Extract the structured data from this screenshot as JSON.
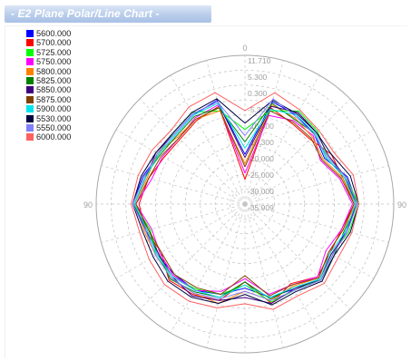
{
  "header": {
    "title": "- E2 Plane Polar/Line Chart -"
  },
  "chart_data": {
    "type": "line",
    "subtype": "polar",
    "title": "- E2 Plane Polar/Line Chart -",
    "angle_ticks": [
      "0",
      "90",
      "90"
    ],
    "radial_ticks": [
      "11.710",
      "5.300",
      "0.300",
      "-5.300",
      "-10.000",
      "-15.300",
      "-20.000",
      "-25.000",
      "-30.000",
      "-35.909"
    ],
    "radial_range": [
      -35.909,
      11.71
    ],
    "grid": true,
    "legend_position": "top-left",
    "angles_deg": [
      0,
      15,
      30,
      45,
      60,
      75,
      90,
      105,
      120,
      135,
      150,
      165,
      180,
      195,
      210,
      225,
      240,
      255,
      270,
      285,
      300,
      315,
      330,
      345
    ],
    "series": [
      {
        "name": "5600.000",
        "color": "#0000ff",
        "values": [
          -20,
          -2,
          -3,
          -4.5,
          -6.5,
          -2,
          0,
          -2.5,
          -3.5,
          -1.5,
          -4.5,
          -5,
          -9,
          -6,
          -4,
          -4,
          -3.5,
          -3.5,
          0,
          -2,
          -4,
          -4.5,
          -3,
          -1.5
        ]
      },
      {
        "name": "5700.000",
        "color": "#ff0000",
        "values": [
          -28,
          -4,
          -6,
          -6.5,
          -4,
          -3.5,
          -1,
          -4,
          -4.5,
          -3,
          -6.5,
          -3,
          -11,
          -4,
          -2.5,
          -1.5,
          -5,
          -3,
          -2,
          -4,
          -6,
          -6.5,
          -5,
          -3.5
        ]
      },
      {
        "name": "5725.000",
        "color": "#00ff00",
        "values": [
          -12,
          -5,
          -1.5,
          -3,
          -5.5,
          -2.5,
          0.5,
          -1.5,
          -4,
          -2,
          -4,
          -3.5,
          -10,
          -6,
          -4.5,
          -3,
          -3,
          -4.5,
          -0.5,
          -3,
          -4,
          -3.5,
          -2,
          -5
        ]
      },
      {
        "name": "5750.000",
        "color": "#ff00ff",
        "values": [
          -26,
          -6.5,
          -5,
          -5,
          -8,
          -4.5,
          -1.5,
          -4,
          -6,
          -3,
          -6,
          -6,
          -12,
          -7,
          -4,
          -3.5,
          -4.5,
          -5,
          -1,
          -5,
          -5.5,
          -6,
          -4,
          -3
        ]
      },
      {
        "name": "5800.000",
        "color": "#ff8000",
        "values": [
          -23,
          -3,
          -4,
          -5.5,
          -7,
          -3.5,
          -0.5,
          -3.5,
          -5,
          -2.5,
          -5.5,
          -4,
          -8,
          -3,
          -3,
          -2.5,
          -3,
          -2.5,
          -0.5,
          -3.5,
          -3.5,
          -5.5,
          -4.5,
          -5
        ]
      },
      {
        "name": "5825.000",
        "color": "#008000",
        "values": [
          -16,
          -2.5,
          -4.5,
          -4,
          -6,
          -3,
          0,
          -3,
          -3,
          -1.5,
          -5,
          -4.5,
          -11,
          -5,
          -3.5,
          -2,
          -4,
          -4,
          0,
          -2.5,
          -4.5,
          -5,
          -3.5,
          -4
        ]
      },
      {
        "name": "5850.000",
        "color": "#400080",
        "values": [
          -21,
          -3.5,
          -2,
          -3.5,
          -5,
          -2.5,
          -0.5,
          -2,
          -4,
          -2,
          -4.5,
          -3,
          -6,
          -4,
          -2,
          -3,
          -4,
          -3,
          -0.5,
          -3,
          -3,
          -4,
          -2.5,
          -2
        ]
      },
      {
        "name": "5875.000",
        "color": "#804000",
        "values": [
          -24,
          -5,
          -5.5,
          -6,
          -7.5,
          -4,
          -1,
          -3.5,
          -5,
          -2.5,
          -6,
          -5.5,
          -13,
          -6,
          -5,
          -4,
          -5,
          -4,
          -1,
          -4,
          -5,
          -6,
          -4.5,
          -4
        ]
      },
      {
        "name": "5900.000",
        "color": "#00e5ee",
        "values": [
          -18,
          -4.5,
          -3,
          -4,
          -6,
          -3,
          -0.5,
          -2.5,
          -4.5,
          -2,
          -5,
          -5,
          -10,
          -5,
          -4,
          -3,
          -3.5,
          -3.5,
          -0.5,
          -3,
          -4,
          -4.5,
          -3,
          -2.5
        ]
      },
      {
        "name": "5530.000",
        "color": "#000040",
        "values": [
          -10,
          -1.5,
          -2.5,
          -3.5,
          -4,
          -1,
          0.5,
          -1,
          -3,
          -1,
          -3.5,
          -2.5,
          -7,
          -3,
          -1.5,
          -1,
          -2,
          -2,
          0,
          -1.5,
          -3,
          -3.5,
          -2,
          -1
        ]
      },
      {
        "name": "5550.000",
        "color": "#8080ff",
        "values": [
          -14,
          -1,
          -3.5,
          -4.5,
          -5.5,
          -2.5,
          0,
          -2,
          -3.5,
          -1.5,
          -4,
          -4,
          -8,
          -4.5,
          -3,
          -2.5,
          -3,
          -3,
          0,
          -2.5,
          -3.5,
          -4,
          -2.5,
          -2
        ]
      },
      {
        "name": "6000.000",
        "color": "#ff6060",
        "values": [
          -6,
          1,
          -1,
          -2.5,
          -3,
          0,
          0.5,
          -0.5,
          -1.5,
          0,
          -2,
          -1,
          -4,
          -1.5,
          0,
          0.5,
          -0.5,
          -1,
          0.5,
          -0.5,
          -1.5,
          -2.5,
          0,
          1
        ]
      }
    ]
  }
}
